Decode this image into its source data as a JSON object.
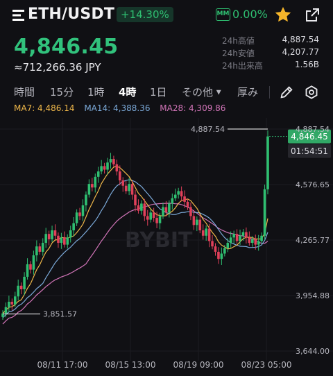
{
  "header": {
    "pair": "ETH/USDT",
    "change_pct": "+14.30%",
    "mm_label": "MM",
    "mm_value": "0.00%"
  },
  "ticker": {
    "last_price": "4,846.45",
    "fiat_value": "≈712,266.36 JPY",
    "stats": [
      {
        "label": "24h高値",
        "value": "4,887.54"
      },
      {
        "label": "24h安値",
        "value": "4,207.77"
      },
      {
        "label": "24h出来高",
        "value": "1.56B"
      }
    ]
  },
  "tabs": {
    "items": [
      "時間",
      "15分",
      "1時",
      "4時",
      "1日",
      "その他",
      "厚み"
    ],
    "active": "4時"
  },
  "indicators": {
    "ma7": "MA7: 4,486.14",
    "ma14": "MA14: 4,388.36",
    "ma28": "MA28: 4,309.86"
  },
  "colors": {
    "up": "#2fbf71",
    "down": "#e0405a",
    "ma7": "#f0b84a",
    "ma14": "#7ba9d8",
    "ma28": "#d275b8",
    "accent": "#f5b52a"
  },
  "chart_data": {
    "type": "candlestick",
    "watermark": "BYBIT",
    "y_ticks": [
      "4,887.54",
      "4,576.65",
      "4,265.77",
      "3,954.88",
      "3,644.00"
    ],
    "y_tick_values": [
      4887.54,
      4576.65,
      4265.77,
      3954.88,
      3644.0
    ],
    "ylim": [
      3644.0,
      4887.54
    ],
    "x_ticks": [
      "08/11 17:00",
      "08/15 13:00",
      "08/19 09:00",
      "08/23 05:00"
    ],
    "high_marker": "4,887.54",
    "low_marker": "3,851.57",
    "last_price_tag": "4,846.45",
    "countdown": "01:54:51",
    "closes": [
      3855,
      3890,
      3920,
      3905,
      3950,
      4010,
      3990,
      4060,
      4130,
      4100,
      4180,
      4230,
      4200,
      4250,
      4300,
      4270,
      4320,
      4290,
      4250,
      4280,
      4240,
      4280,
      4320,
      4360,
      4420,
      4400,
      4460,
      4520,
      4580,
      4560,
      4620,
      4650,
      4680,
      4660,
      4700,
      4720,
      4690,
      4650,
      4600,
      4570,
      4540,
      4580,
      4520,
      4460,
      4430,
      4470,
      4400,
      4380,
      4420,
      4390,
      4360,
      4400,
      4450,
      4420,
      4470,
      4500,
      4520,
      4540,
      4510,
      4480,
      4450,
      4400,
      4350,
      4380,
      4320,
      4290,
      4330,
      4260,
      4230,
      4200,
      4160,
      4190,
      4220,
      4250,
      4280,
      4300,
      4260,
      4290,
      4310,
      4280,
      4250,
      4270,
      4240,
      4260,
      4290,
      4550,
      4846
    ]
  }
}
